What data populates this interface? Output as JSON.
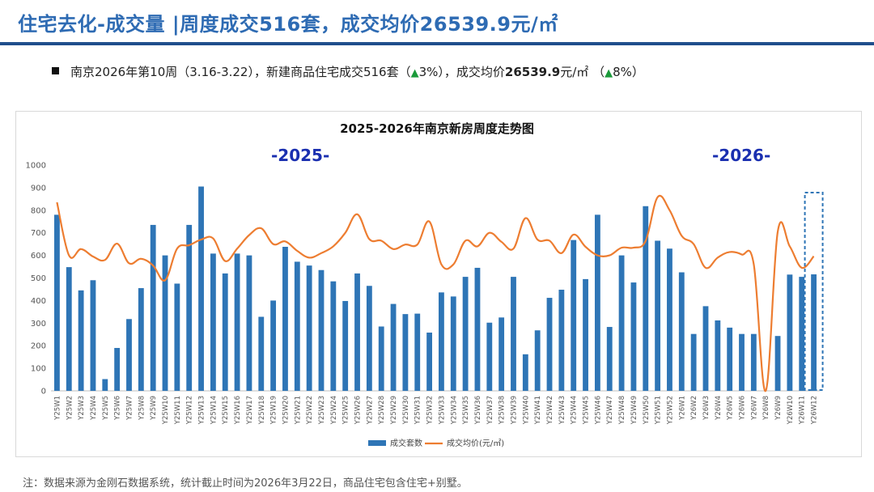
{
  "header": {
    "title": "住宅去化-成交量 |周度成交516套，成交均价26539.9元/㎡"
  },
  "summary": {
    "prefix": "南京2026年第10周（3.16-3.22），新建商品住宅成交516套（",
    "volume_change_arrow": "▲",
    "volume_change": "3%",
    "middle": "），成交均价",
    "price": "26539.9",
    "price_unit": "元/㎡ （",
    "price_change_arrow": "▲",
    "price_change": "8%",
    "suffix": "）"
  },
  "footnote": "注：数据来源为金刚石数据系统，统计截止时间为2026年3月22日，商品住宅包含住宅+别墅。",
  "colors": {
    "bar": "#2e75b6",
    "line": "#ed7d31",
    "highlight": "#2e75b6",
    "up_arrow": "#1a9a3a"
  },
  "chart_data": {
    "type": "bar",
    "title": "2025-2026年南京新房周度走势图",
    "year_labels": [
      "-2025-",
      "-2026-"
    ],
    "ylim": [
      0,
      1000
    ],
    "yticks": [
      0,
      100,
      200,
      300,
      400,
      500,
      600,
      700,
      800,
      900,
      1000
    ],
    "grid": false,
    "legend_position": "bottom",
    "highlight_category": "Y26W12",
    "categories": [
      "Y25W1",
      "Y25W2",
      "Y25W3",
      "Y25W4",
      "Y25W5",
      "Y25W6",
      "Y25W7",
      "Y25W8",
      "Y25W9",
      "Y25W10",
      "Y25W11",
      "Y25W12",
      "Y25W13",
      "Y25W14",
      "Y25W15",
      "Y25W16",
      "Y25W17",
      "Y25W18",
      "Y25W19",
      "Y25W20",
      "Y25W21",
      "Y25W22",
      "Y25W23",
      "Y25W24",
      "Y25W25",
      "Y25W26",
      "Y25W27",
      "Y25W28",
      "Y25W29",
      "Y25W30",
      "Y25W31",
      "Y25W32",
      "Y25W33",
      "Y25W34",
      "Y25W35",
      "Y25W36",
      "Y25W37",
      "Y25W38",
      "Y25W39",
      "Y25W40",
      "Y25W41",
      "Y25W42",
      "Y25W43",
      "Y25W44",
      "Y25W45",
      "Y25W46",
      "Y25W47",
      "Y25W48",
      "Y25W49",
      "Y25W50",
      "Y25W51",
      "Y25W52",
      "Y26W1",
      "Y26W2",
      "Y26W3",
      "Y26W4",
      "Y26W5",
      "Y26W6",
      "Y26W7",
      "Y26W8",
      "Y26W9",
      "Y26W10",
      "Y26W11",
      "Y26W12"
    ],
    "series": [
      {
        "name": "成交套数",
        "kind": "bar",
        "values": [
          780,
          548,
          445,
          490,
          52,
          190,
          318,
          455,
          735,
          600,
          475,
          735,
          905,
          608,
          520,
          608,
          600,
          328,
          400,
          638,
          572,
          555,
          535,
          485,
          398,
          520,
          465,
          285,
          385,
          340,
          342,
          258,
          436,
          418,
          505,
          545,
          302,
          325,
          505,
          162,
          268,
          412,
          448,
          668,
          495,
          780,
          283,
          600,
          480,
          818,
          665,
          630,
          525,
          252,
          375,
          312,
          280,
          252,
          252,
          0,
          243,
          515,
          505,
          516
        ]
      },
      {
        "name": "成交均价(元/㎡)",
        "kind": "line",
        "values": [
          835,
          600,
          628,
          595,
          580,
          652,
          565,
          585,
          555,
          490,
          630,
          645,
          670,
          675,
          575,
          630,
          690,
          720,
          650,
          662,
          620,
          590,
          610,
          640,
          700,
          782,
          672,
          665,
          628,
          648,
          648,
          750,
          560,
          560,
          665,
          640,
          700,
          660,
          630,
          765,
          670,
          665,
          610,
          692,
          638,
          600,
          600,
          634,
          634,
          664,
          858,
          800,
          687,
          650,
          545,
          590,
          615,
          604,
          562,
          0,
          705,
          640,
          545,
          596
        ]
      }
    ]
  }
}
